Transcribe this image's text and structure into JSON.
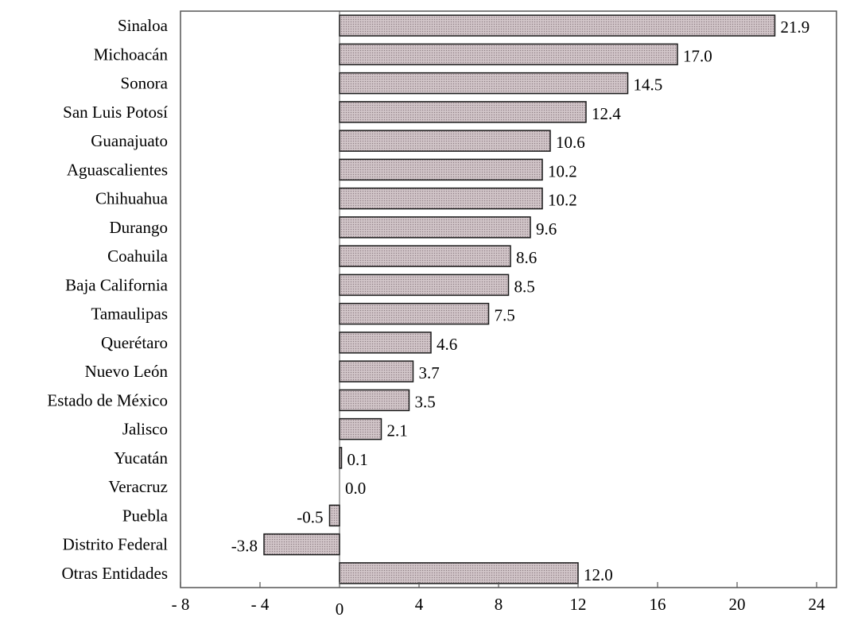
{
  "chart_data": {
    "type": "bar",
    "orientation": "horizontal",
    "title": "",
    "xlabel": "",
    "ylabel": "",
    "categories": [
      "Sinaloa",
      "Michoacán",
      "Sonora",
      "San Luis Potosí",
      "Guanajuato",
      "Aguascalientes",
      "Chihuahua",
      "Durango",
      "Coahuila",
      "Baja California",
      "Tamaulipas",
      "Querétaro",
      "Nuevo León",
      "Estado de México",
      "Jalisco",
      "Yucatán",
      "Veracruz",
      "Puebla",
      "Distrito Federal",
      "Otras Entidades"
    ],
    "values": [
      21.9,
      17.0,
      14.5,
      12.4,
      10.6,
      10.2,
      10.2,
      9.6,
      8.6,
      8.5,
      7.5,
      4.6,
      3.7,
      3.5,
      2.1,
      0.1,
      0.0,
      -0.5,
      -3.8,
      12.0
    ],
    "value_labels": [
      "21.9",
      "17.0",
      "14.5",
      "12.4",
      "10.6",
      "10.2",
      "10.2",
      "9.6",
      "8.6",
      "8.5",
      "7.5",
      "4.6",
      "3.7",
      "3.5",
      "2.1",
      "0.1",
      "0.0",
      "-0.5",
      "-3.8",
      "12.0"
    ],
    "xlim": [
      -8,
      25
    ],
    "x_ticks": [
      -8,
      -4,
      0,
      4,
      8,
      12,
      16,
      20,
      24
    ],
    "x_tick_labels": [
      "- 8",
      "- 4",
      "0",
      "4",
      "8",
      "12",
      "16",
      "20",
      "24"
    ],
    "grid": false,
    "legend": "none",
    "colors": {
      "bar_fill": "#c9bcc0",
      "bar_stroke": "#1a1a1a",
      "axis": "#555555"
    }
  }
}
